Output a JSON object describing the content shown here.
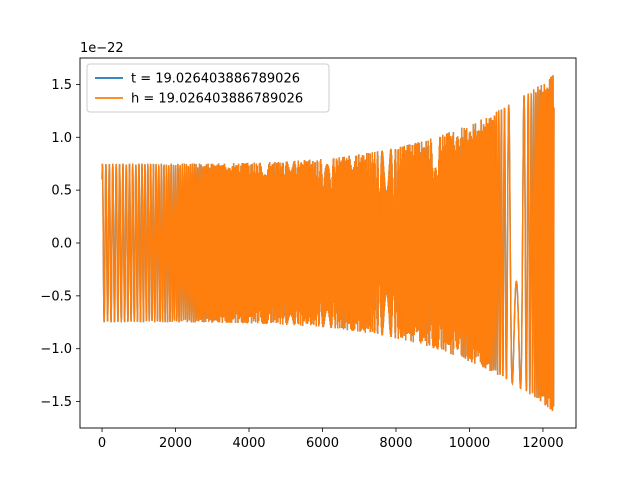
{
  "chart_data": {
    "type": "line",
    "title": "",
    "xlabel": "",
    "ylabel": "",
    "y_scale_label": "1e−22",
    "xlim": [
      -600,
      12900
    ],
    "ylim": [
      -1.75,
      1.75
    ],
    "x_ticks": [
      0,
      2000,
      4000,
      6000,
      8000,
      10000,
      12000
    ],
    "x_tick_labels": [
      "0",
      "2000",
      "4000",
      "6000",
      "8000",
      "10000",
      "12000"
    ],
    "y_ticks": [
      -1.5,
      -1.0,
      -0.5,
      0.0,
      0.5,
      1.0,
      1.5
    ],
    "y_tick_labels": [
      "−1.5",
      "−1.0",
      "−0.5",
      "0.0",
      "0.5",
      "1.0",
      "1.5"
    ],
    "grid": false,
    "legend_position": "upper-left",
    "series": [
      {
        "name": "t = 19.026403886789026",
        "color": "#1f77b4",
        "description_points": {
          "x_start": 0,
          "x_end": 12300,
          "start_amplitude": 0.75,
          "end_amplitude": 1.6,
          "initial_value": 0.6
        }
      },
      {
        "name": "h = 19.026403886789026",
        "color": "#ff7f0e",
        "description_points": {
          "x_start": 0,
          "x_end": 12300,
          "start_amplitude": 0.75,
          "end_amplitude": 1.6,
          "initial_value": 0.6
        }
      }
    ]
  }
}
